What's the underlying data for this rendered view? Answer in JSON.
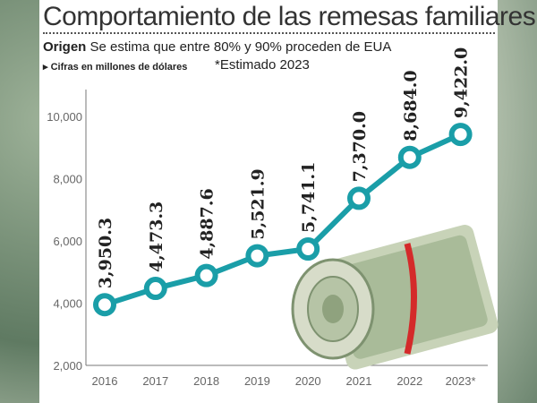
{
  "header": {
    "title": "Comportamiento de las remesas familiares",
    "origin_label": "Origen",
    "origin_text": "Se estima que entre 80% y 90% proceden de EUA",
    "units_note": "Cifras en millones de dólares",
    "estimate_note": "*Estimado 2023"
  },
  "chart_data": {
    "type": "line",
    "title": "Comportamiento de las remesas familiares",
    "ylabel": "Millones de dólares",
    "xlabel": "",
    "categories": [
      "2016",
      "2017",
      "2018",
      "2019",
      "2020",
      "2021",
      "2022",
      "2023*"
    ],
    "values": [
      3950.3,
      4473.3,
      4887.6,
      5521.9,
      5741.1,
      7370.0,
      8684.0,
      9422.0
    ],
    "labels": [
      "3,950.3",
      "4,473.3",
      "4,887.6",
      "5,521.9",
      "5,741.1",
      "7,370.0",
      "8,684.0",
      "9,422.0"
    ],
    "yticks": [
      "2,000",
      "4,000",
      "6,000",
      "8,000",
      "10,000"
    ],
    "ytick_values": [
      2000,
      4000,
      6000,
      8000,
      10000
    ],
    "ylim": [
      2000,
      10000
    ],
    "grid": false,
    "color": "#1a9ea8"
  }
}
